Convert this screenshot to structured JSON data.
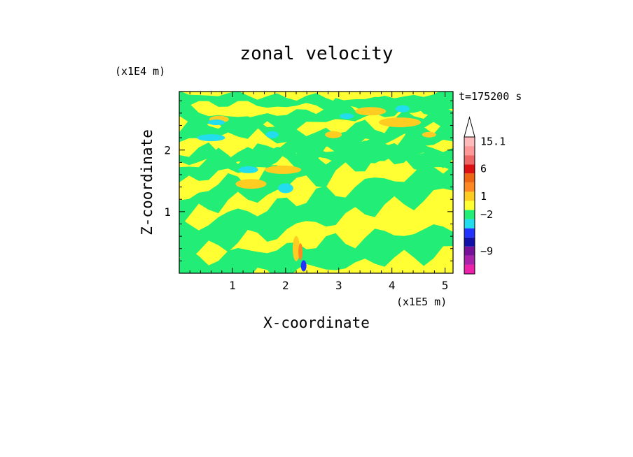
{
  "chart_data": {
    "type": "heatmap",
    "title": "zonal velocity",
    "xlabel": "X-coordinate",
    "ylabel": "Z-coordinate",
    "x_unit": "(x1E5 m)",
    "z_unit": "(x1E4 m)",
    "time_label": "t=175200 s",
    "xlim": [
      0,
      5.15
    ],
    "ylim": [
      0,
      2.95
    ],
    "x_ticks": [
      "1",
      "2",
      "3",
      "4",
      "5"
    ],
    "y_ticks": [
      "1",
      "2"
    ],
    "colorbar": {
      "labels": [
        "15.1",
        "6",
        "1",
        "−2",
        "−9"
      ],
      "bands": [
        {
          "color": "#ee22aa"
        },
        {
          "color": "#aa22aa"
        },
        {
          "color": "#771199"
        },
        {
          "color": "#1111aa"
        },
        {
          "color": "#2233ff"
        },
        {
          "color": "#22ddee"
        },
        {
          "color": "#22ee77"
        },
        {
          "color": "#ffff33"
        },
        {
          "color": "#ffcc22"
        },
        {
          "color": "#ff8822"
        },
        {
          "color": "#ee6611"
        },
        {
          "color": "#dd1111"
        },
        {
          "color": "#ee6666"
        },
        {
          "color": "#ff9999"
        },
        {
          "color": "#ffbbbb"
        }
      ]
    },
    "field_colors": {
      "background": "#ffff33",
      "band": "#22ee77",
      "warm": "#ffcc22",
      "cool": "#22ddee",
      "strong_pos": "#ff8822",
      "strong_neg": "#2233ff"
    }
  }
}
